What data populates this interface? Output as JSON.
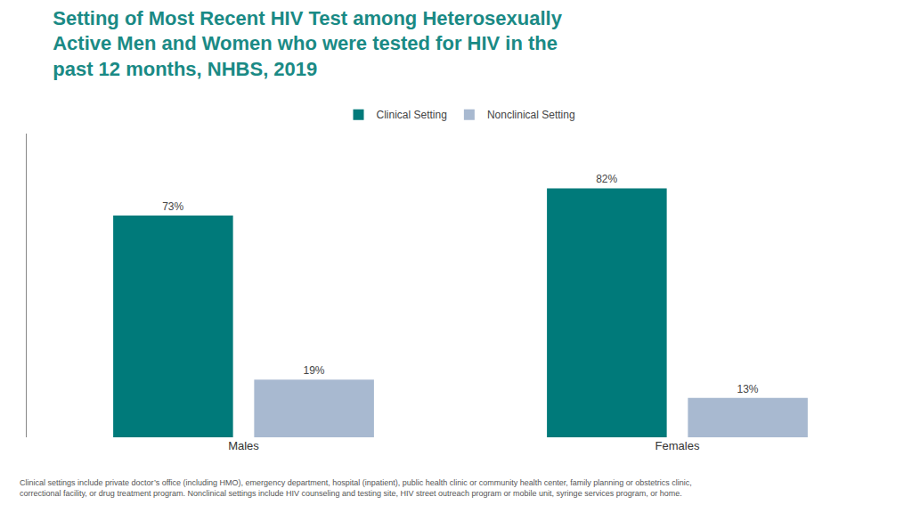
{
  "chart_data": {
    "type": "bar",
    "title": "Setting of Most Recent HIV Test among Heterosexually\nActive Men and Women who were tested for HIV in the\npast 12 months, NHBS, 2019",
    "categories": [
      "Males",
      "Females"
    ],
    "series": [
      {
        "name": "Clinical Setting",
        "color": "#007a7a",
        "values": [
          73,
          82
        ],
        "value_labels": [
          "73%",
          "82%"
        ]
      },
      {
        "name": "Nonclinical Setting",
        "color": "#a8b9d0",
        "values": [
          19,
          13
        ],
        "value_labels": [
          "19%",
          "13%"
        ]
      }
    ],
    "annotations": [
      "Clinical settings include private doctor’s office (including HMO), emergency department, hospital (inpatient), public health clinic or community health center, family planning or obstetrics clinic,\ncorrectional facility, or drug treatment program. Nonclinical settings include HIV counseling and testing site, HIV street outreach program or mobile unit, syringe services program, or home."
    ],
    "ylim": [
      0,
      100
    ],
    "grid": false,
    "legend": "top",
    "data_labels": true,
    "tick_labels": "x"
  }
}
